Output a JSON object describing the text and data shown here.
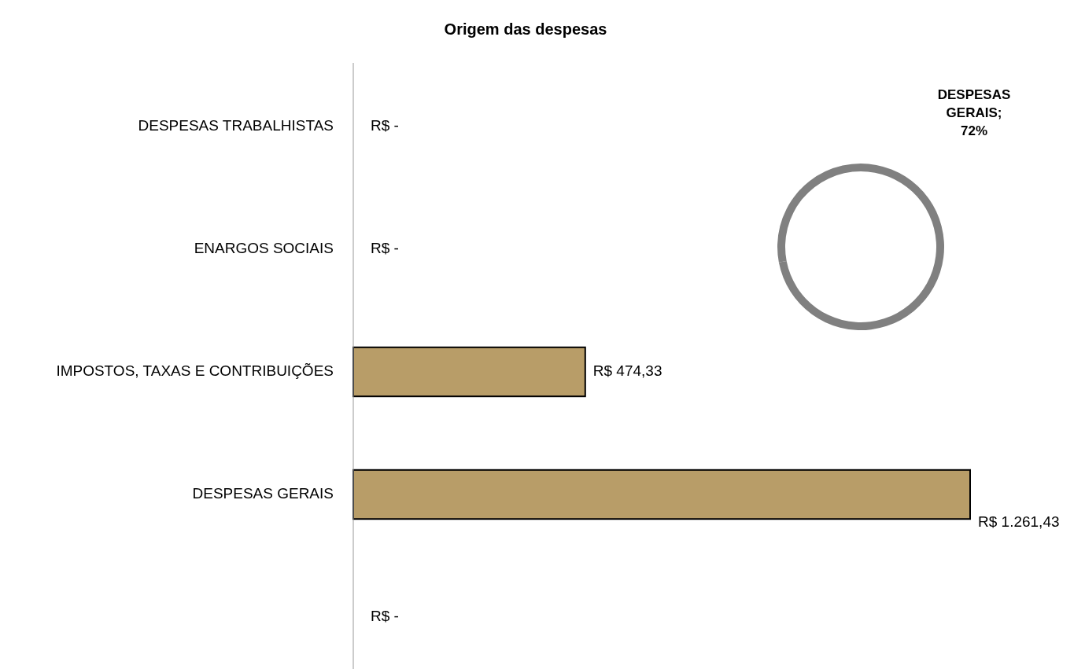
{
  "chart_data": [
    {
      "type": "bar",
      "orientation": "horizontal",
      "title": "Origem das despesas",
      "categories": [
        "DESPESAS TRABALHISTAS",
        "ENARGOS SOCIAIS",
        "IMPOSTOS, TAXAS E CONTRIBUIÇÕES",
        "DESPESAS GERAIS",
        null
      ],
      "values": [
        0,
        0,
        474.33,
        1261.43,
        0
      ],
      "value_labels": [
        "R$ -",
        "R$ -",
        "R$ 474,33",
        "R$ 1.261,43",
        "R$ -"
      ],
      "color": "#b89d68"
    },
    {
      "type": "donut",
      "categories": [
        null,
        null
      ],
      "values": [
        72,
        28
      ],
      "colors": [
        "#808080",
        "#808080"
      ],
      "value_labels": [
        "DESPESAS GERAIS; 72%",
        null
      ]
    }
  ]
}
